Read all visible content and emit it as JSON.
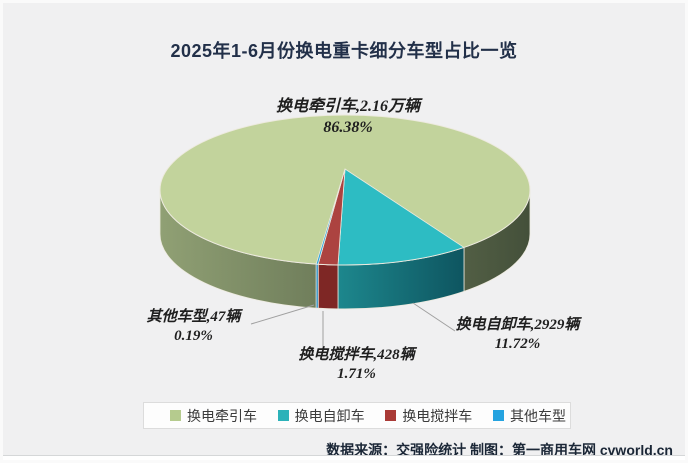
{
  "chart_data": {
    "type": "pie",
    "style": "3d-pie",
    "title": "2025年1-6月份换电重卡细分车型占比一览",
    "unit": "辆",
    "legend_position": "bottom",
    "start_angle_deg": 189,
    "series": [
      {
        "name": "换电牵引车",
        "value": 21600,
        "value_label": "2.16万辆",
        "percent": "86.38%",
        "pct": 86.38,
        "color": "#c2d39c",
        "legend_color": "#b5cb8e",
        "side_from": "#90a074",
        "side_to": "#44503a",
        "callout_line1": "换电牵引车,2.16万辆",
        "callout_line2": "86.38%"
      },
      {
        "name": "换电自卸车",
        "value": 2929,
        "value_label": "2929辆",
        "percent": "11.72%",
        "pct": 11.72,
        "color": "#2dbcc3",
        "legend_color": "#2cb2b9",
        "side_from": "#1d878d",
        "side_to": "#0e5560",
        "callout_line1": "换电自卸车,2929辆",
        "callout_line2": "11.72%"
      },
      {
        "name": "换电搅拌车",
        "value": 428,
        "value_label": "428辆",
        "percent": "1.71%",
        "pct": 1.71,
        "color": "#ac4340",
        "legend_color": "#a93a36",
        "side_from": "#7e2725",
        "side_to": "#7e2725",
        "callout_line1": "换电搅拌车,428辆",
        "callout_line2": "1.71%"
      },
      {
        "name": "其他车型",
        "value": 47,
        "value_label": "47辆",
        "percent": "0.19%",
        "pct": 0.19,
        "color": "#29a6e1",
        "legend_color": "#25a3e0",
        "side_from": "#1f8cc7",
        "side_to": "#1f8cc7",
        "callout_line1": "其他车型,47辆",
        "callout_line2": "0.19%"
      }
    ]
  },
  "footer": {
    "text": "数据来源：交强险统计 制图：第一商用车网 cvworld.cn"
  }
}
